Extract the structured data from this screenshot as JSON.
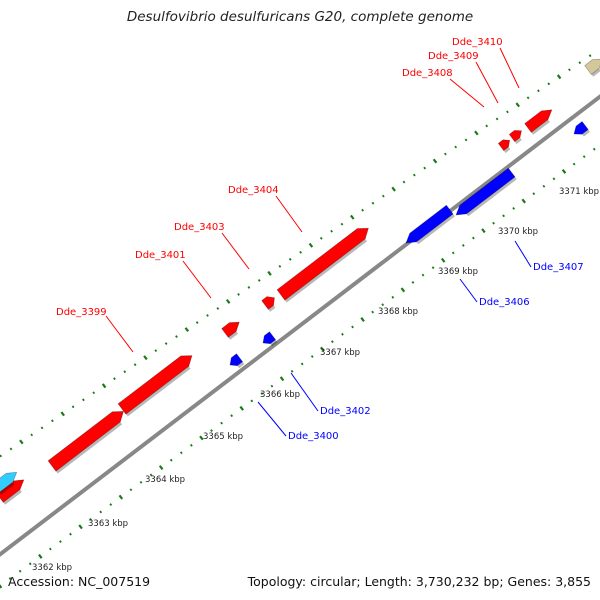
{
  "title": "Desulfovibrio desulfuricans G20, complete genome",
  "footer": {
    "accession": "Accession: NC_007519",
    "info": "Topology: circular; Length: 3,730,232 bp; Genes: 3,855"
  },
  "colors": {
    "forward": "#ff0000",
    "reverse": "#0000ff",
    "backbone": "#888888",
    "tick": "#1a7a1a",
    "cyan_gene": "#33ccff",
    "khaki_gene": "#d2c89a"
  },
  "scale_labels": [
    "3362 kbp",
    "3363 kbp",
    "3364 kbp",
    "3365 kbp",
    "3366 kbp",
    "3367 kbp",
    "3368 kbp",
    "3369 kbp",
    "3370 kbp",
    "3371 kbp"
  ],
  "forward_genes": [
    "Dde_3399",
    "Dde_3401",
    "Dde_3403",
    "Dde_3404",
    "Dde_3408",
    "Dde_3409",
    "Dde_3410"
  ],
  "reverse_genes": [
    "Dde_3400",
    "Dde_3402",
    "Dde_3406",
    "Dde_3407"
  ]
}
